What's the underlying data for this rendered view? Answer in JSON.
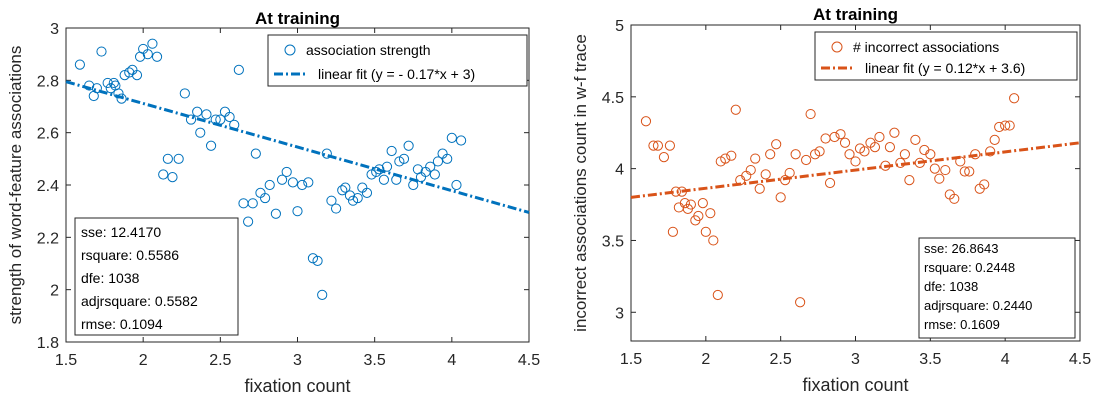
{
  "chart_data": [
    {
      "type": "scatter",
      "title": "At training",
      "xlabel": "fixation count",
      "ylabel": "strength of word-feature associations",
      "xlim": [
        1.5,
        4.5
      ],
      "ylim": [
        1.8,
        3.0
      ],
      "xticks": [
        "1.5",
        "2",
        "2.5",
        "3",
        "3.5",
        "4",
        "4.5"
      ],
      "yticks": [
        "1.8",
        "2",
        "2.2",
        "2.4",
        "2.6",
        "2.8",
        "3"
      ],
      "grid": false,
      "legend_position": "top-right",
      "colors": {
        "points": "#0072BD",
        "fit": "#0072BD"
      },
      "series": [
        {
          "name": "association strength",
          "kind": "points",
          "x": [
            1.59,
            1.65,
            1.68,
            1.7,
            1.73,
            1.77,
            1.79,
            1.81,
            1.82,
            1.84,
            1.86,
            1.88,
            1.91,
            1.93,
            1.96,
            1.98,
            2.0,
            2.03,
            2.06,
            2.09,
            2.13,
            2.16,
            2.19,
            2.23,
            2.27,
            2.31,
            2.35,
            2.37,
            2.41,
            2.44,
            2.47,
            2.5,
            2.53,
            2.56,
            2.59,
            2.62,
            2.65,
            2.68,
            2.71,
            2.73,
            2.76,
            2.79,
            2.82,
            2.86,
            2.9,
            2.93,
            2.97,
            3.0,
            3.03,
            3.07,
            3.1,
            3.13,
            3.16,
            3.19,
            3.22,
            3.25,
            3.29,
            3.31,
            3.34,
            3.36,
            3.39,
            3.42,
            3.45,
            3.48,
            3.51,
            3.53,
            3.56,
            3.58,
            3.61,
            3.64,
            3.66,
            3.69,
            3.72,
            3.75,
            3.78,
            3.8,
            3.83,
            3.86,
            3.89,
            3.91,
            3.94,
            3.97,
            4.0,
            4.03,
            4.06
          ],
          "y": [
            2.86,
            2.78,
            2.74,
            2.77,
            2.91,
            2.79,
            2.77,
            2.79,
            2.78,
            2.75,
            2.73,
            2.82,
            2.83,
            2.84,
            2.82,
            2.89,
            2.92,
            2.9,
            2.94,
            2.89,
            2.44,
            2.5,
            2.43,
            2.5,
            2.75,
            2.65,
            2.68,
            2.6,
            2.67,
            2.55,
            2.65,
            2.65,
            2.68,
            2.66,
            2.63,
            2.84,
            2.33,
            2.26,
            2.33,
            2.52,
            2.37,
            2.35,
            2.4,
            2.29,
            2.42,
            2.45,
            2.41,
            2.3,
            2.4,
            2.41,
            2.12,
            2.11,
            1.98,
            2.52,
            2.34,
            2.31,
            2.38,
            2.39,
            2.36,
            2.34,
            2.35,
            2.39,
            2.37,
            2.44,
            2.45,
            2.46,
            2.42,
            2.47,
            2.53,
            2.42,
            2.49,
            2.5,
            2.55,
            2.4,
            2.46,
            2.43,
            2.45,
            2.47,
            2.44,
            2.49,
            2.52,
            2.5,
            2.58,
            2.4,
            2.57
          ]
        },
        {
          "name": "linear fit (y = - 0.17*x + 3)",
          "kind": "line",
          "x": [
            1.5,
            4.5
          ],
          "y": [
            2.795,
            2.295
          ]
        }
      ],
      "annotation_lines": [
        "sse: 12.4170",
        "rsquare: 0.5586",
        "dfe: 1038",
        "adjrsquare: 0.5582",
        "rmse: 0.1094"
      ],
      "annotation_position": "bottom-left"
    },
    {
      "type": "scatter",
      "title": "At training",
      "xlabel": "fixation count",
      "ylabel": "incorrect associations count in w-f trace",
      "xlim": [
        1.5,
        4.5
      ],
      "ylim": [
        2.8,
        5.0
      ],
      "xticks": [
        "1.5",
        "2",
        "2.5",
        "3",
        "3.5",
        "4",
        "4.5"
      ],
      "yticks": [
        "3",
        "3.5",
        "4",
        "4.5",
        "5"
      ],
      "grid": false,
      "legend_position": "top-right",
      "colors": {
        "points": "#D95319",
        "fit": "#D95319"
      },
      "series": [
        {
          "name": "# incorrect associations",
          "kind": "points",
          "x": [
            1.6,
            1.65,
            1.68,
            1.72,
            1.76,
            1.78,
            1.8,
            1.82,
            1.84,
            1.86,
            1.88,
            1.9,
            1.93,
            1.95,
            1.98,
            2.0,
            2.03,
            2.05,
            2.08,
            2.1,
            2.13,
            2.17,
            2.2,
            2.23,
            2.27,
            2.3,
            2.33,
            2.36,
            2.4,
            2.43,
            2.47,
            2.5,
            2.53,
            2.56,
            2.6,
            2.63,
            2.67,
            2.7,
            2.73,
            2.76,
            2.8,
            2.83,
            2.86,
            2.9,
            2.93,
            2.96,
            3.0,
            3.03,
            3.06,
            3.1,
            3.13,
            3.16,
            3.2,
            3.23,
            3.26,
            3.3,
            3.33,
            3.36,
            3.4,
            3.43,
            3.46,
            3.5,
            3.53,
            3.56,
            3.6,
            3.63,
            3.66,
            3.7,
            3.73,
            3.76,
            3.8,
            3.83,
            3.86,
            3.9,
            3.93,
            3.96,
            4.0,
            4.03,
            4.06
          ],
          "y": [
            4.33,
            4.16,
            4.16,
            4.08,
            4.16,
            3.56,
            3.84,
            3.73,
            3.84,
            3.76,
            3.72,
            3.75,
            3.64,
            3.67,
            3.76,
            3.56,
            3.69,
            3.5,
            3.12,
            4.05,
            4.07,
            4.09,
            4.41,
            3.92,
            3.95,
            3.99,
            4.07,
            3.86,
            3.96,
            4.1,
            4.17,
            3.8,
            3.92,
            3.97,
            4.1,
            3.07,
            4.06,
            4.38,
            4.1,
            4.12,
            4.21,
            3.9,
            4.22,
            4.24,
            4.18,
            4.1,
            4.05,
            4.14,
            4.12,
            4.18,
            4.15,
            4.22,
            4.02,
            4.15,
            4.25,
            4.04,
            4.1,
            3.92,
            4.2,
            4.04,
            4.13,
            4.1,
            4.0,
            3.93,
            3.99,
            3.82,
            3.79,
            4.05,
            3.98,
            3.98,
            4.1,
            3.86,
            3.89,
            4.12,
            4.2,
            4.29,
            4.3,
            4.3,
            4.49
          ]
        },
        {
          "name": "linear fit (y = 0.12*x + 3.6)",
          "kind": "line",
          "x": [
            1.5,
            4.5
          ],
          "y": [
            3.8,
            4.18
          ]
        }
      ],
      "annotation_lines": [
        "sse: 26.8643",
        "rsquare: 0.2448",
        "dfe: 1038",
        "adjrsquare: 0.2440",
        "rmse: 0.1609"
      ],
      "annotation_position": "bottom-right"
    }
  ]
}
